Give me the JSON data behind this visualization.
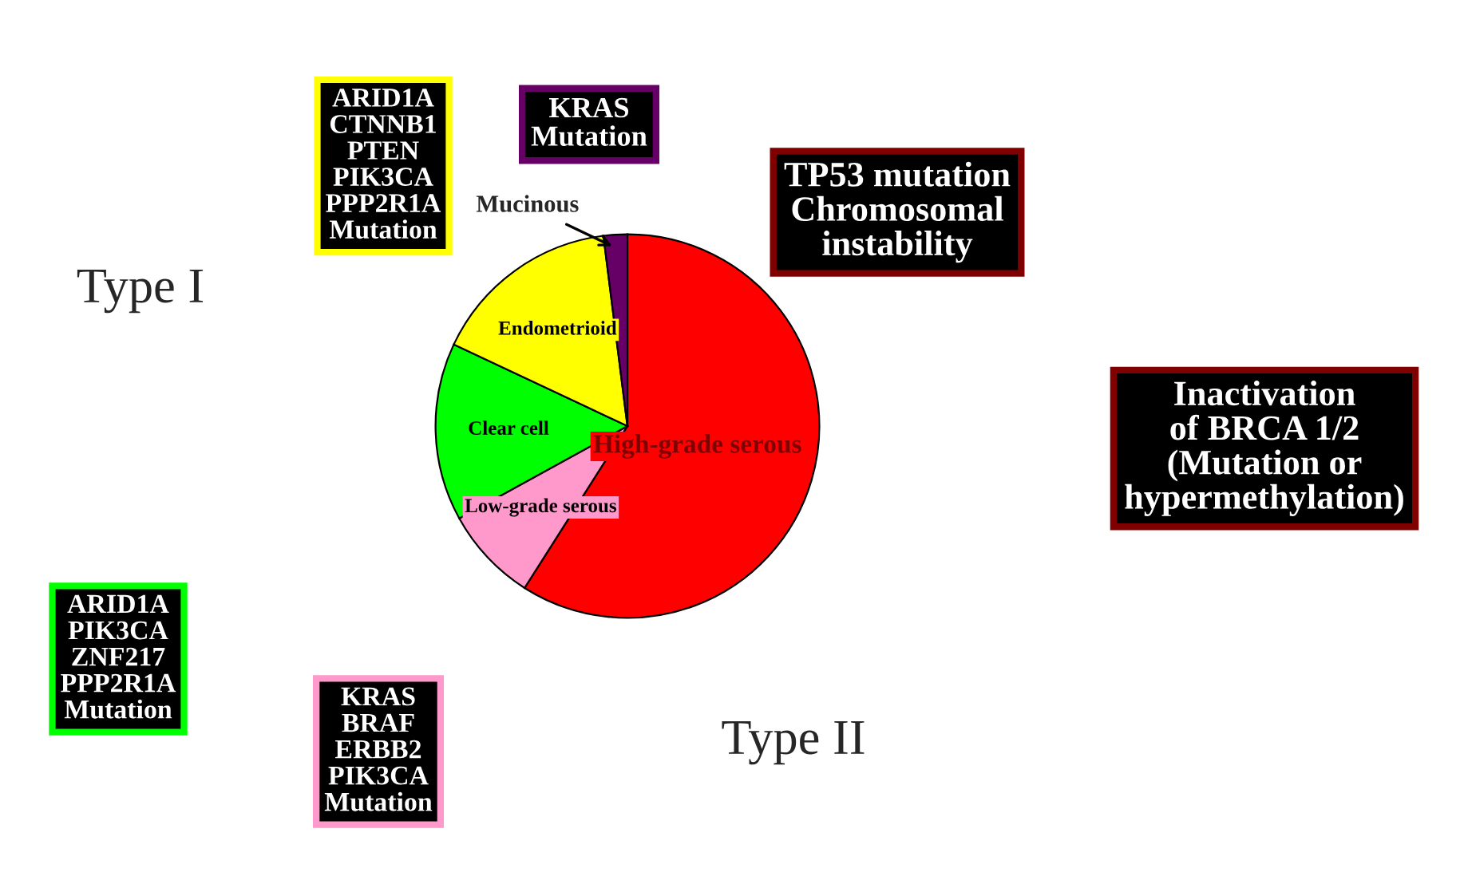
{
  "chart_data": {
    "type": "pie",
    "categories": [
      "High-grade serous",
      "Low-grade serous",
      "Clear cell",
      "Endometrioid",
      "Mucinous"
    ],
    "values": [
      59,
      8,
      15,
      16,
      2
    ],
    "colors": [
      "#ff0000",
      "#ff99cc",
      "#00ff00",
      "#ffff00",
      "#660066"
    ],
    "annotations": [
      "Type I",
      "ARID1A\nCTNNB1\nPTEN\nPIK3CA\nPPP2R1A\nMutation",
      "KRAS\nMutation",
      "TP53 mutation\nChromosomal\ninstability",
      "Inactivation\nof BRCA 1/2\n(Mutation or\nhypermethylation)",
      "ARID1A\nPIK3CA\nZNF217\nPPP2R1A\nMutation",
      "KRAS\nBRAF\nERBB2\nPIK3CA\nMutation",
      "Type II"
    ]
  }
}
